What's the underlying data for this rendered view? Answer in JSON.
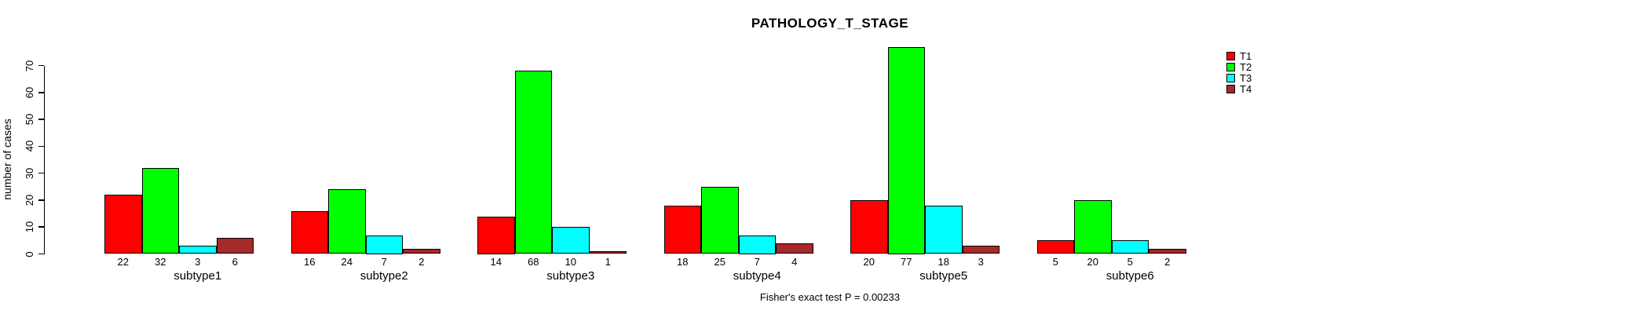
{
  "chart_data": {
    "type": "bar",
    "title": "PATHOLOGY_T_STAGE",
    "subtitle": "Fisher's exact test P = 0.00233",
    "xlabel": "",
    "ylabel": "number of cases",
    "categories": [
      "subtype1",
      "subtype2",
      "subtype3",
      "subtype4",
      "subtype5",
      "subtype6"
    ],
    "series": [
      {
        "name": "T1",
        "color": "#FF0000",
        "values": [
          22,
          16,
          14,
          18,
          20,
          5
        ]
      },
      {
        "name": "T2",
        "color": "#00FF00",
        "values": [
          32,
          24,
          68,
          25,
          77,
          20
        ]
      },
      {
        "name": "T3",
        "color": "#00FFFF",
        "values": [
          3,
          7,
          10,
          7,
          18,
          5
        ]
      },
      {
        "name": "T4",
        "color": "#A52A2A",
        "values": [
          6,
          2,
          1,
          4,
          3,
          2
        ]
      }
    ],
    "ylim": [
      0,
      70
    ],
    "yticks": [
      0,
      10,
      20,
      30,
      40,
      50,
      60,
      70
    ],
    "bar_value_labels_shown": true,
    "grid": false,
    "legend_position": "right-outside",
    "background": "#FFFFFF",
    "text_color": "#000000"
  }
}
